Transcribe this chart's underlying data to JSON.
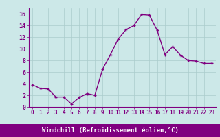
{
  "x": [
    0,
    1,
    2,
    3,
    4,
    5,
    6,
    7,
    8,
    9,
    10,
    11,
    12,
    13,
    14,
    15,
    16,
    17,
    18,
    19,
    20,
    21,
    22,
    23
  ],
  "y": [
    3.8,
    3.2,
    3.1,
    1.7,
    1.7,
    0.5,
    1.6,
    2.3,
    2.0,
    6.5,
    9.0,
    11.7,
    13.3,
    14.0,
    15.9,
    15.8,
    13.2,
    9.0,
    10.4,
    8.9,
    8.0,
    7.9,
    7.5,
    7.5
  ],
  "line_color": "#800080",
  "marker": "+",
  "markersize": 3,
  "linewidth": 1.0,
  "bg_color": "#cce8e8",
  "grid_color": "#aacccc",
  "xlabel": "Windchill (Refroidissement éolien,°C)",
  "xlabel_bg": "#800080",
  "xlabel_fg": "#ffffff",
  "xlabel_fontsize": 6.5,
  "ylabel_ticks": [
    0,
    2,
    4,
    6,
    8,
    10,
    12,
    14,
    16
  ],
  "xlim": [
    -0.5,
    23.5
  ],
  "ylim": [
    0,
    17
  ],
  "xtick_labels": [
    "0",
    "1",
    "2",
    "3",
    "4",
    "5",
    "6",
    "7",
    "8",
    "9",
    "10",
    "11",
    "12",
    "13",
    "14",
    "15",
    "16",
    "17",
    "18",
    "19",
    "20",
    "21",
    "22",
    "23"
  ],
  "tick_fontsize": 5.5,
  "ytick_fontsize": 6.0
}
